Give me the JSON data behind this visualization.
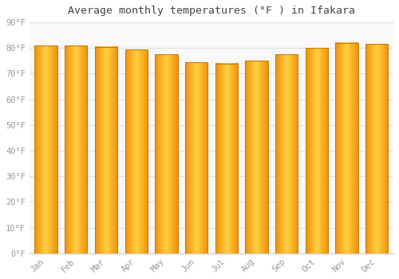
{
  "title": "Average monthly temperatures (°F ) in Ifakara",
  "months": [
    "Jan",
    "Feb",
    "Mar",
    "Apr",
    "May",
    "Jun",
    "Jul",
    "Aug",
    "Sep",
    "Oct",
    "Nov",
    "Dec"
  ],
  "values": [
    81,
    81,
    80.5,
    79.5,
    77.5,
    74.5,
    74,
    75,
    77.5,
    80,
    82,
    81.5
  ],
  "bar_color_center": "#FFD040",
  "bar_color_edge": "#F0900A",
  "bar_edge_color": "#C87800",
  "background_color": "#FFFFFF",
  "plot_bg_color": "#FAF8F8",
  "grid_color": "#E0E0E0",
  "text_color": "#999999",
  "title_color": "#444444",
  "ylim": [
    0,
    90
  ],
  "yticks": [
    0,
    10,
    20,
    30,
    40,
    50,
    60,
    70,
    80,
    90
  ],
  "ylabel_format": "°F",
  "figsize": [
    5.0,
    3.5
  ],
  "dpi": 100,
  "bar_width": 0.75
}
